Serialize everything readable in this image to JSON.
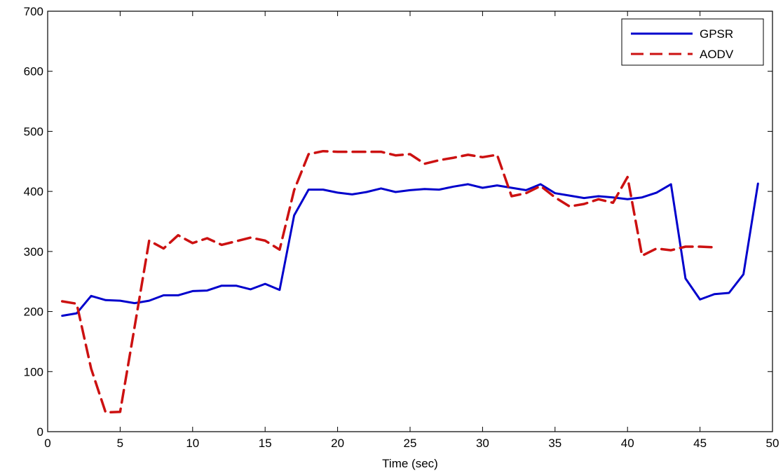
{
  "chart_data": {
    "type": "line",
    "xlabel": "Time (sec)",
    "ylabel": "",
    "xlim": [
      0,
      50
    ],
    "ylim": [
      0,
      700
    ],
    "xticks": [
      0,
      5,
      10,
      15,
      20,
      25,
      30,
      35,
      40,
      45,
      50
    ],
    "yticks": [
      0,
      100,
      200,
      300,
      400,
      500,
      600,
      700
    ],
    "grid": false,
    "legend_position": "top-right",
    "series": [
      {
        "name": "GPSR",
        "color": "#0000cc",
        "style": "solid",
        "x": [
          1,
          2,
          3,
          4,
          5,
          6,
          7,
          8,
          9,
          10,
          11,
          12,
          13,
          14,
          15,
          16,
          17,
          18,
          19,
          20,
          21,
          22,
          23,
          24,
          25,
          26,
          27,
          28,
          29,
          30,
          31,
          32,
          33,
          34,
          35,
          36,
          37,
          38,
          39,
          40,
          41,
          42,
          43,
          44,
          45,
          46,
          47,
          48,
          49
        ],
        "y": [
          193,
          197,
          226,
          219,
          218,
          214,
          218,
          227,
          227,
          234,
          235,
          243,
          243,
          237,
          246,
          236,
          360,
          403,
          403,
          398,
          395,
          399,
          405,
          399,
          402,
          404,
          403,
          408,
          412,
          406,
          410,
          406,
          402,
          412,
          397,
          393,
          389,
          392,
          390,
          387,
          390,
          398,
          412,
          255,
          220,
          229,
          231,
          262,
          413
        ]
      },
      {
        "name": "AODV",
        "color": "#cc1111",
        "style": "dashed",
        "x": [
          1,
          2,
          3,
          4,
          5,
          6,
          7,
          8,
          9,
          10,
          11,
          12,
          13,
          14,
          15,
          16,
          17,
          18,
          19,
          20,
          21,
          22,
          23,
          24,
          25,
          26,
          27,
          28,
          29,
          30,
          31,
          32,
          33,
          34,
          35,
          36,
          37,
          38,
          39,
          40,
          41,
          42,
          43,
          44,
          45,
          46
        ],
        "y": [
          217,
          213,
          105,
          32,
          33,
          175,
          318,
          305,
          327,
          314,
          322,
          311,
          317,
          323,
          318,
          303,
          402,
          462,
          467,
          466,
          466,
          466,
          466,
          460,
          462,
          446,
          452,
          456,
          461,
          457,
          461,
          392,
          397,
          409,
          390,
          375,
          379,
          387,
          381,
          424,
          293,
          305,
          302,
          308,
          308,
          307
        ]
      }
    ]
  }
}
